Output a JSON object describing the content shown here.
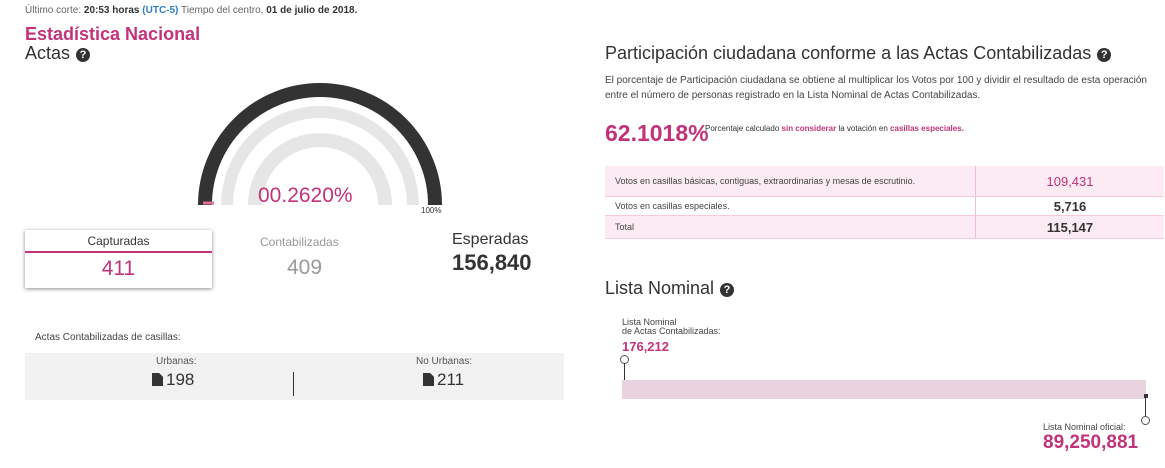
{
  "header": {
    "cut_prefix": "Último corte:",
    "cut_time": "20:53 horas",
    "cut_tz": "(UTC-5)",
    "cut_mid": "Tiempo del centro,",
    "cut_date": "01 de julio de 2018."
  },
  "actas": {
    "section_title": "Estadística Nacional",
    "title": "Actas",
    "gauge_percentage": "00.2620%",
    "gauge_max_label": "100%",
    "gauge_fraction": 0.00262,
    "capturadas_label": "Capturadas",
    "capturadas_value": "411",
    "contabilizadas_label": "Contabilizadas",
    "contabilizadas_value": "409",
    "esperadas_label": "Esperadas",
    "esperadas_value": "156,840"
  },
  "casillas": {
    "title": "Actas Contabilizadas de casillas:",
    "urbanas_label": "Urbanas:",
    "urbanas_value": "198",
    "no_urbanas_label": "No Urbanas:",
    "no_urbanas_value": "211"
  },
  "participacion": {
    "title": "Participación ciudadana conforme a las Actas Contabilizadas",
    "description": "El porcentaje de Participación ciudadana se obtiene al multiplicar los Votos por 100 y dividir el resultado de esta operación entre el número de personas registrado en la Lista Nominal de Actas Contabilizadas.",
    "percentage": "62.1018%",
    "note_prefix": "Porcentaje calculado",
    "note_bold1": "sin considerar",
    "note_mid": "la votación en",
    "note_bold2": "casillas especiales."
  },
  "votes_table": [
    {
      "label": "Votos en casillas básicas, contiguas, extraordinarias y mesas de escrutinio.",
      "value": "109,431"
    },
    {
      "label": "Votos en casillas especiales.",
      "value": "5,716"
    },
    {
      "label": "Total",
      "value": "115,147"
    }
  ],
  "lista_nominal": {
    "title": "Lista Nominal",
    "actas_label_1": "Lista Nominal",
    "actas_label_2": "de Actas Contabilizadas:",
    "actas_value": "176,212",
    "oficial_label": "Lista Nominal oficial:",
    "oficial_value": "89,250,881",
    "actas_fraction": 0.001974
  },
  "colors": {
    "accent": "#c2337a",
    "gauge_track": "#e6e6e6",
    "gauge_outer": "#333333",
    "bar": "#e9d3de"
  }
}
